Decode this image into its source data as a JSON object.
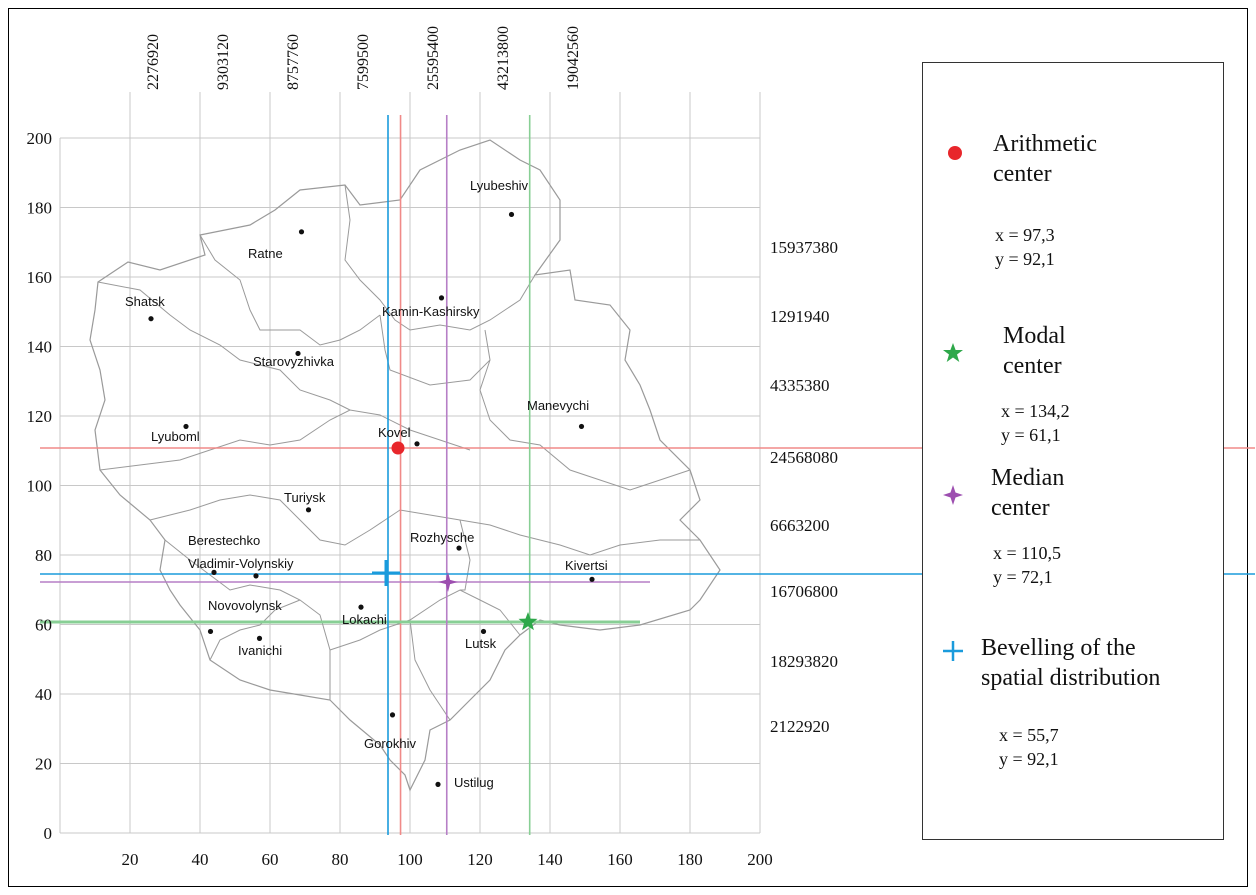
{
  "map": {
    "x_ticks": [
      "20",
      "40",
      "60",
      "80",
      "100",
      "120",
      "140",
      "160",
      "180",
      "200"
    ],
    "y_ticks": [
      "0",
      "20",
      "40",
      "60",
      "80",
      "100",
      "120",
      "140",
      "160",
      "180",
      "200"
    ],
    "x_range": [
      0,
      200
    ],
    "y_range": [
      0,
      200
    ],
    "grid": true,
    "top_values": [
      "2276920",
      "9303120",
      "8757760",
      "7599500",
      "25595400",
      "43213800",
      "19042560"
    ],
    "right_values": [
      "15937380",
      "1291940",
      "4335380",
      "24568080",
      "6663200",
      "16706800",
      "18293820",
      "2122920"
    ],
    "cities": [
      {
        "name": "Lyubeshiv",
        "x": 129,
        "y": 178
      },
      {
        "name": "Ratne",
        "x": 69,
        "y": 173
      },
      {
        "name": "Shatsk",
        "x": 26,
        "y": 148
      },
      {
        "name": "Kamin-Kashirsky",
        "x": 109,
        "y": 154
      },
      {
        "name": "Starovyzhivka",
        "x": 68,
        "y": 138
      },
      {
        "name": "Manevychi",
        "x": 149,
        "y": 117
      },
      {
        "name": "Lyuboml",
        "x": 36,
        "y": 117
      },
      {
        "name": "Kovel",
        "x": 102,
        "y": 112
      },
      {
        "name": "Turiysk",
        "x": 71,
        "y": 93
      },
      {
        "name": "Rozhysche",
        "x": 114,
        "y": 82
      },
      {
        "name": "Berestechko",
        "x": 44,
        "y": 75
      },
      {
        "name": "Vladimir-Volynskiy",
        "x": 56,
        "y": 74
      },
      {
        "name": "Kivertsi",
        "x": 152,
        "y": 73
      },
      {
        "name": "Novovolynsk",
        "x": 43,
        "y": 58
      },
      {
        "name": "Lokachi",
        "x": 86,
        "y": 65
      },
      {
        "name": "Lutsk",
        "x": 121,
        "y": 58
      },
      {
        "name": "Ivanichi",
        "x": 57,
        "y": 56
      },
      {
        "name": "Gorokhiv",
        "x": 95,
        "y": 34
      },
      {
        "name": "Ustilug",
        "x": 108,
        "y": 14
      }
    ]
  },
  "legend": {
    "arithmetic": {
      "title_line1": "Arithmetic",
      "title_line2": "center",
      "x_label": "x = 97,3",
      "y_label": "y = 92,1",
      "x": 97.3,
      "y": 92.1,
      "color": "#e8262b",
      "line_color": "#f08a88"
    },
    "modal": {
      "title_line1": "Modal",
      "title_line2": "center",
      "x_label": "x = 134,2",
      "y_label": "y = 61,1",
      "x": 134.2,
      "y": 61.1,
      "color": "#2ea84a",
      "line_color": "#88cf95"
    },
    "median": {
      "title_line1": "Median",
      "title_line2": "center",
      "x_label": "x = 110,5",
      "y_label": "y = 72,1",
      "x": 110.5,
      "y": 72.1,
      "color": "#9d4fb0",
      "line_color": "#b67fc6"
    },
    "bevelling": {
      "title_line1": "Bevelling of the",
      "title_line2": "spatial distribution",
      "x_label": "x = 55,7",
      "y_label": "y = 92,1",
      "x": 55.7,
      "y": 92.1,
      "color": "#1a9bdc",
      "line_color": "#1a9bdc"
    }
  }
}
